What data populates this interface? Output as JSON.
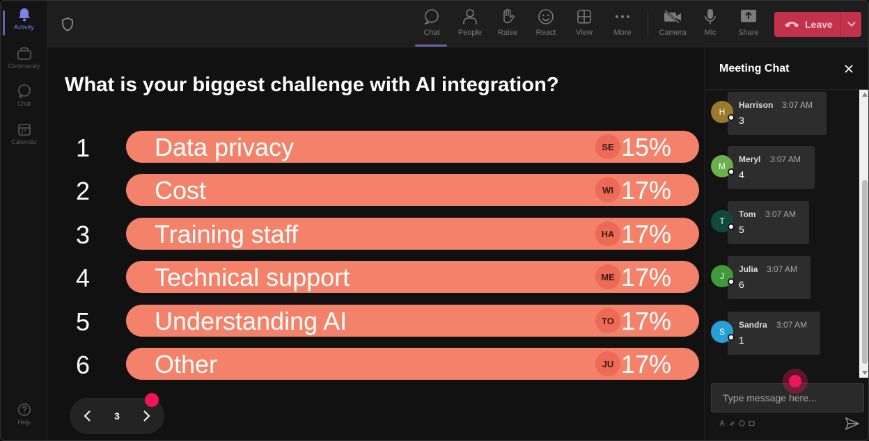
{
  "rail": {
    "items": [
      {
        "label": "Activity",
        "icon": "bell-icon",
        "active": true
      },
      {
        "label": "Community",
        "icon": "community-icon"
      },
      {
        "label": "Chat",
        "icon": "chat-icon"
      },
      {
        "label": "Calendar",
        "icon": "calendar-icon"
      }
    ],
    "help": {
      "label": "Help",
      "icon": "help-icon"
    }
  },
  "toolbar": {
    "buttons": [
      {
        "label": "Chat",
        "icon": "chat-icon",
        "active": true
      },
      {
        "label": "People",
        "icon": "people-icon"
      },
      {
        "label": "Raise",
        "icon": "raise-hand-icon"
      },
      {
        "label": "React",
        "icon": "smiley-icon"
      },
      {
        "label": "View",
        "icon": "grid-icon"
      },
      {
        "label": "More",
        "icon": "more-icon"
      },
      {
        "label": "Camera",
        "icon": "camera-off-icon"
      },
      {
        "label": "Mic",
        "icon": "mic-icon"
      },
      {
        "label": "Share",
        "icon": "share-icon"
      }
    ],
    "leave_label": "Leave"
  },
  "poll": {
    "question": "What is your biggest challenge with AI integration?",
    "options": [
      {
        "num": "1",
        "label": "Data privacy",
        "initials": "SE",
        "pct": "15%"
      },
      {
        "num": "2",
        "label": "Cost",
        "initials": "WI",
        "pct": "17%"
      },
      {
        "num": "3",
        "label": "Training staff",
        "initials": "HA",
        "pct": "17%"
      },
      {
        "num": "4",
        "label": "Technical support",
        "initials": "ME",
        "pct": "17%"
      },
      {
        "num": "5",
        "label": "Understanding AI",
        "initials": "TO",
        "pct": "17%"
      },
      {
        "num": "6",
        "label": "Other",
        "initials": "JU",
        "pct": "17%"
      }
    ],
    "page": "3"
  },
  "chat": {
    "title": "Meeting Chat",
    "messages": [
      {
        "initial": "H",
        "name": "Harrison",
        "time": "3:07 AM",
        "text": "3",
        "color": "#9a7b2a"
      },
      {
        "initial": "M",
        "name": "Meryl",
        "time": "3:07 AM",
        "text": "4",
        "color": "#6ab04c"
      },
      {
        "initial": "T",
        "name": "Tom",
        "time": "3:07 AM",
        "text": "5",
        "color": "#0f4a3c"
      },
      {
        "initial": "J",
        "name": "Julia",
        "time": "3:07 AM",
        "text": "6",
        "color": "#3f9a3a"
      },
      {
        "initial": "S",
        "name": "Sandra",
        "time": "3:07 AM",
        "text": "1",
        "color": "#2a9fd6"
      }
    ],
    "input_placeholder": "Type message here..."
  }
}
